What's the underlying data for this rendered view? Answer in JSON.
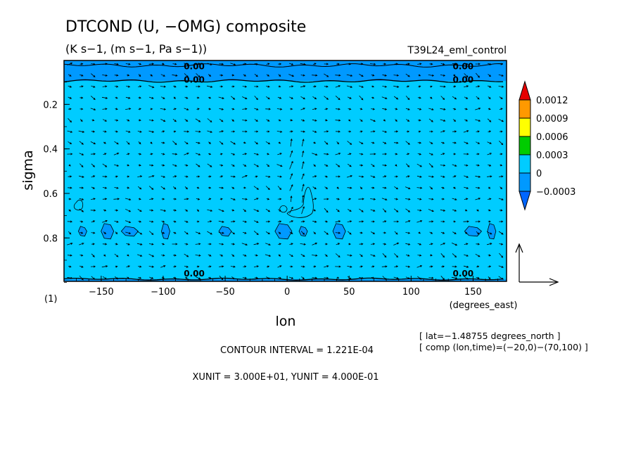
{
  "header": {
    "title": "DTCOND (U, −OMG) composite",
    "units": "(K s−1, (m s−1, Pa s−1))",
    "run_name": "T39L24_eml_control"
  },
  "chart_data": {
    "type": "heatmap",
    "subtype": "filled contour with wind vectors",
    "xlabel": "lon",
    "xunits": "(degrees_east)",
    "ylabel": "sigma",
    "panel_label": "(1)",
    "xlim": [
      -180,
      177
    ],
    "ylim": [
      0.995,
      0.003
    ],
    "y_inverted": true,
    "x_ticks": [
      -150,
      -100,
      -50,
      0,
      50,
      100,
      150
    ],
    "x_tick_labels": [
      "−150",
      "−100",
      "−50",
      "0",
      "50",
      "100",
      "150"
    ],
    "y_ticks": [
      0.2,
      0.4,
      0.6,
      0.8
    ],
    "y_tick_labels": [
      "0.2",
      "0.4",
      "0.6",
      "0.8"
    ],
    "color_levels": [
      -0.0003,
      0,
      0.0003,
      0.0006,
      0.0009,
      0.0012
    ],
    "colorbar_labels": [
      "0.0012",
      "0.0009",
      "0.0006",
      "0.0003",
      "0",
      "−0.0003"
    ],
    "colorbar_colors": [
      "#e60000",
      "#ff9900",
      "#ffff00",
      "#00cc00",
      "#00ccff",
      "#0099ff",
      "#0066ff"
    ],
    "contour_labels": [
      {
        "text": "0.00",
        "lon": -75,
        "sigma": 0.03
      },
      {
        "text": "0.00",
        "lon": 142,
        "sigma": 0.03
      },
      {
        "text": "0.00",
        "lon": -75,
        "sigma": 0.09
      },
      {
        "text": "0.00",
        "lon": 142,
        "sigma": 0.09
      },
      {
        "text": "0.00",
        "lon": -75,
        "sigma": 0.96
      },
      {
        "text": "0.00",
        "lon": 142,
        "sigma": 0.96
      }
    ],
    "background_value_range": [
      0,
      0.0003
    ],
    "negative_bands": [
      {
        "sigma_range": [
          0.003,
          0.095
        ],
        "value": "-0.0003 to 0"
      },
      {
        "sigma_range": [
          0.985,
          0.995
        ],
        "value": "-0.0003 to 0"
      }
    ],
    "negative_patches_near_sigma": 0.77,
    "negative_patches_lon": [
      -165,
      -145,
      -127,
      -98,
      -50,
      -3,
      13,
      42,
      150,
      165
    ],
    "contour_interval_text": "CONTOUR INTERVAL = 1.221E-04",
    "unit_vector_text": "XUNIT = 3.000E+01, YUNIT = 4.000E-01",
    "lat_info": "[ lat=−1.48755 degrees_north ]",
    "comp_info": "[ comp (lon,time)=(−20,0)−(70,100) ]"
  },
  "colors": {
    "background_fill": "#00ccff",
    "negative_fill": "#0099ff",
    "contour_line": "#000000",
    "frame": "#000000"
  }
}
